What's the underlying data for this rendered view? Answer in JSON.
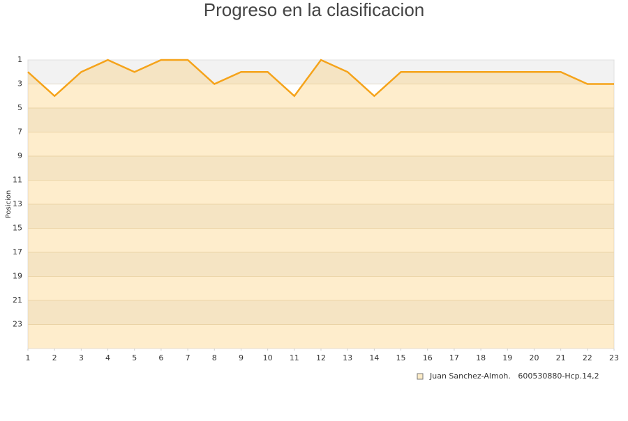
{
  "chart_data": {
    "type": "area",
    "title": "Progreso en la clasificacion",
    "y_label": "Posicion",
    "x": [
      1,
      2,
      3,
      4,
      5,
      6,
      7,
      8,
      9,
      10,
      11,
      12,
      13,
      14,
      15,
      16,
      17,
      18,
      19,
      20,
      21,
      22,
      23
    ],
    "series": [
      {
        "name": "Juan Sanchez-Almoh.   600530880-Hcp.14,2",
        "color": "#f5a31a",
        "fill": "rgba(253,200,100,0.33)",
        "values": [
          2,
          4,
          2,
          1,
          2,
          1,
          1,
          3,
          2,
          2,
          4,
          1,
          2,
          4,
          2,
          2,
          2,
          2,
          2,
          2,
          2,
          3,
          3
        ]
      }
    ],
    "xlim": [
      1,
      23
    ],
    "xticks": [
      1,
      2,
      3,
      4,
      5,
      6,
      7,
      8,
      9,
      10,
      11,
      12,
      13,
      14,
      15,
      16,
      17,
      18,
      19,
      20,
      21,
      22,
      23
    ],
    "ylim": [
      1,
      25
    ],
    "yticks": [
      1,
      3,
      5,
      7,
      9,
      11,
      13,
      15,
      17,
      19,
      21,
      23
    ],
    "y_inverted": true,
    "grid": true,
    "legend": "bottom-right"
  }
}
